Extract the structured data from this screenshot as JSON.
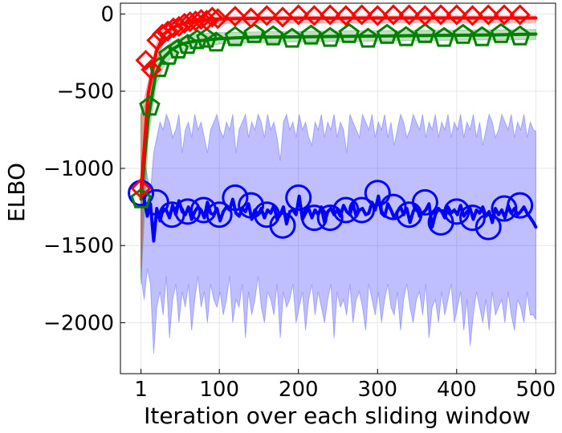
{
  "chart_data": {
    "type": "line",
    "xlabel": "Iteration over each sliding window",
    "ylabel": "ELBO",
    "xlim": [
      -25,
      525
    ],
    "ylim": [
      -2330,
      70
    ],
    "xticks": [
      1,
      100,
      200,
      300,
      400,
      500
    ],
    "xtick_labels": [
      "1",
      "100",
      "200",
      "300",
      "400",
      "500"
    ],
    "yticks": [
      0,
      -500,
      -1000,
      -1500,
      -2000
    ],
    "ytick_labels": [
      "0",
      "−500",
      "−1000",
      "−1500",
      "−2000"
    ],
    "grid": true,
    "legend": null,
    "colors": {
      "red": "#ff0000",
      "green": "#008000",
      "blue": "#0000ff"
    },
    "series": [
      {
        "color": "#ff0000",
        "marker": "diamond",
        "x": [
          1,
          10,
          20,
          30,
          40,
          50,
          60,
          70,
          80,
          90,
          100,
          120,
          150,
          200,
          250,
          300,
          350,
          400,
          450,
          500
        ],
        "values": [
          -1150,
          -520,
          -250,
          -130,
          -90,
          -68,
          -55,
          -45,
          -40,
          -36,
          -33,
          -30,
          -28,
          -27,
          -27,
          -26,
          -26,
          -26,
          -26,
          -26
        ],
        "band_lower": [
          -1650,
          -600,
          -310,
          -180,
          -130,
          -100,
          -85,
          -75,
          -70,
          -66,
          -63,
          -60,
          -58,
          -57,
          -57,
          -56,
          -56,
          -56,
          -56,
          -56
        ],
        "band_upper": [
          -650,
          -440,
          -200,
          -90,
          -55,
          -40,
          -30,
          -25,
          -22,
          -20,
          -18,
          -15,
          -14,
          -13,
          -13,
          -12,
          -12,
          -12,
          -12,
          -12
        ],
        "markers_x": [
          1,
          7,
          14,
          21,
          28,
          35,
          42,
          49,
          56,
          63,
          70,
          77,
          84,
          91,
          98,
          120,
          140,
          160,
          180,
          200,
          220,
          240,
          260,
          280,
          300,
          320,
          340,
          360,
          380,
          400,
          420,
          440,
          460,
          480
        ],
        "markers_y": [
          -1130,
          -300,
          -360,
          -170,
          -130,
          -110,
          -90,
          -80,
          -60,
          -50,
          -45,
          -35,
          -40,
          -20,
          -30,
          -15,
          -25,
          -10,
          -20,
          -5,
          -10,
          -5,
          -10,
          -5,
          -10,
          -5,
          -5,
          -10,
          -5,
          -5,
          -10,
          -5,
          -5,
          -5
        ]
      },
      {
        "color": "#008000",
        "marker": "pentagon",
        "x": [
          1,
          10,
          20,
          30,
          40,
          50,
          60,
          70,
          80,
          100,
          120,
          150,
          200,
          250,
          300,
          350,
          400,
          450,
          500
        ],
        "values": [
          -1200,
          -680,
          -380,
          -280,
          -230,
          -200,
          -185,
          -175,
          -170,
          -160,
          -155,
          -150,
          -148,
          -145,
          -143,
          -140,
          -138,
          -135,
          -130
        ],
        "band_lower": [
          -1750,
          -820,
          -460,
          -340,
          -280,
          -250,
          -230,
          -220,
          -210,
          -195,
          -190,
          -185,
          -180,
          -178,
          -175,
          -172,
          -170,
          -168,
          -165
        ],
        "band_upper": [
          -650,
          -540,
          -300,
          -220,
          -180,
          -155,
          -140,
          -130,
          -125,
          -120,
          -118,
          -115,
          -112,
          -110,
          -108,
          -106,
          -104,
          -102,
          -100
        ],
        "markers_x": [
          1,
          12,
          24,
          36,
          48,
          60,
          72,
          84,
          96,
          120,
          144,
          168,
          192,
          216,
          240,
          264,
          288,
          312,
          336,
          360,
          384,
          408,
          432,
          456,
          480
        ],
        "markers_y": [
          -1200,
          -600,
          -350,
          -270,
          -230,
          -200,
          -170,
          -160,
          -185,
          -150,
          -130,
          -145,
          -160,
          -140,
          -155,
          -130,
          -160,
          -135,
          -150,
          -130,
          -155,
          -135,
          -150,
          -130,
          -145
        ]
      },
      {
        "color": "#0000ff",
        "marker": "circle",
        "x": [
          1,
          5,
          9,
          13,
          17,
          21,
          25,
          29,
          33,
          37,
          41,
          45,
          49,
          53,
          57,
          61,
          65,
          69,
          73,
          77,
          81,
          85,
          89,
          93,
          97,
          101,
          105,
          109,
          113,
          117,
          121,
          125,
          129,
          133,
          137,
          141,
          145,
          149,
          153,
          157,
          161,
          165,
          169,
          173,
          177,
          181,
          185,
          189,
          193,
          197,
          201,
          205,
          209,
          213,
          217,
          221,
          225,
          229,
          233,
          237,
          241,
          245,
          249,
          253,
          257,
          261,
          265,
          269,
          273,
          277,
          281,
          285,
          289,
          293,
          297,
          301,
          305,
          309,
          313,
          317,
          321,
          325,
          329,
          333,
          337,
          341,
          345,
          349,
          353,
          357,
          361,
          365,
          369,
          373,
          377,
          381,
          385,
          389,
          393,
          397,
          401,
          405,
          409,
          413,
          417,
          421,
          425,
          429,
          433,
          437,
          441,
          445,
          449,
          453,
          457,
          461,
          465,
          469,
          473,
          477,
          481,
          485,
          489,
          493,
          497,
          500
        ],
        "values": [
          -1150,
          -1200,
          -1310,
          -1230,
          -1470,
          -1260,
          -1340,
          -1260,
          -1270,
          -1320,
          -1240,
          -1300,
          -1210,
          -1280,
          -1300,
          -1250,
          -1330,
          -1280,
          -1250,
          -1270,
          -1320,
          -1220,
          -1290,
          -1300,
          -1260,
          -1340,
          -1280,
          -1250,
          -1270,
          -1200,
          -1290,
          -1310,
          -1260,
          -1280,
          -1230,
          -1330,
          -1270,
          -1300,
          -1260,
          -1320,
          -1270,
          -1290,
          -1240,
          -1330,
          -1300,
          -1250,
          -1360,
          -1280,
          -1270,
          -1300,
          -1180,
          -1330,
          -1290,
          -1260,
          -1320,
          -1270,
          -1300,
          -1250,
          -1350,
          -1280,
          -1260,
          -1300,
          -1270,
          -1310,
          -1240,
          -1280,
          -1300,
          -1230,
          -1310,
          -1270,
          -1260,
          -1300,
          -1290,
          -1220,
          -1270,
          -1180,
          -1290,
          -1310,
          -1230,
          -1270,
          -1320,
          -1280,
          -1250,
          -1300,
          -1260,
          -1350,
          -1280,
          -1240,
          -1310,
          -1290,
          -1270,
          -1230,
          -1380,
          -1300,
          -1260,
          -1280,
          -1320,
          -1250,
          -1290,
          -1270,
          -1300,
          -1240,
          -1310,
          -1280,
          -1260,
          -1330,
          -1270,
          -1290,
          -1250,
          -1310,
          -1280,
          -1350,
          -1260,
          -1300,
          -1270,
          -1320,
          -1240,
          -1290,
          -1260,
          -1300,
          -1280,
          -1250,
          -1290,
          -1320,
          -1350,
          -1380
        ],
        "band_lower": [
          -1700,
          -1850,
          -1650,
          -1750,
          -2200,
          -1900,
          -1800,
          -1950,
          -1700,
          -2100,
          -1850,
          -1750,
          -2000,
          -1800,
          -1900,
          -1750,
          -2050,
          -1850,
          -1700,
          -1900,
          -1800,
          -2000,
          -1750,
          -1850,
          -1900,
          -1800,
          -1950,
          -1850,
          -1700,
          -2000,
          -1850,
          -1900,
          -1750,
          -2100,
          -1800,
          -1950,
          -1850,
          -1700,
          -1900,
          -2000,
          -1800,
          -1850,
          -1950,
          -1750,
          -2100,
          -1800,
          -1900,
          -1850,
          -1750,
          -2000,
          -1900,
          -1800,
          -2050,
          -1850,
          -1750,
          -1950,
          -1800,
          -1900,
          -2000,
          -1850,
          -1750,
          -2100,
          -1800,
          -1900,
          -1850,
          -1950,
          -1750,
          -2000,
          -1850,
          -1800,
          -1900,
          -2050,
          -1750,
          -1850,
          -1950,
          -1800,
          -2000,
          -1850,
          -1750,
          -1900,
          -1950,
          -1800,
          -2050,
          -1850,
          -1750,
          -1900,
          -2000,
          -1850,
          -1800,
          -1950,
          -1750,
          -2100,
          -1900,
          -1850,
          -2000,
          -1800,
          -1950,
          -1850,
          -1750,
          -2000,
          -1900,
          -1800,
          -2050,
          -1850,
          -2150,
          -1950,
          -1800,
          -1900,
          -2000,
          -1850,
          -2050,
          -1800,
          -1950,
          -1900,
          -1850,
          -2000,
          -1800,
          -1950,
          -2050,
          -1850,
          -1900,
          -2000,
          -1800,
          -1950,
          -1950,
          -1980
        ],
        "band_upper": [
          -1100,
          -950,
          -1050,
          -1150,
          -900,
          -800,
          -700,
          -750,
          -650,
          -700,
          -800,
          -750,
          -650,
          -900,
          -750,
          -700,
          -800,
          -650,
          -750,
          -700,
          -800,
          -900,
          -750,
          -700,
          -650,
          -750,
          -800,
          -700,
          -750,
          -650,
          -900,
          -750,
          -700,
          -650,
          -800,
          -700,
          -750,
          -650,
          -700,
          -800,
          -650,
          -750,
          -700,
          -800,
          -950,
          -700,
          -650,
          -750,
          -700,
          -800,
          -650,
          -750,
          -700,
          -800,
          -850,
          -700,
          -750,
          -650,
          -800,
          -700,
          -750,
          -650,
          -800,
          -700,
          -750,
          -900,
          -650,
          -700,
          -750,
          -800,
          -650,
          -700,
          -750,
          -650,
          -800,
          -700,
          -750,
          -650,
          -800,
          -700,
          -850,
          -750,
          -650,
          -700,
          -800,
          -750,
          -650,
          -700,
          -750,
          -650,
          -800,
          -700,
          -750,
          -650,
          -800,
          -700,
          -750,
          -650,
          -800,
          -700,
          -750,
          -650,
          -800,
          -700,
          -750,
          -650,
          -800,
          -700,
          -850,
          -750,
          -650,
          -700,
          -800,
          -750,
          -650,
          -700,
          -750,
          -650,
          -800,
          -700,
          -750,
          -650,
          -800,
          -700,
          -750,
          -760
        ],
        "markers_x": [
          1,
          20,
          40,
          60,
          80,
          100,
          120,
          140,
          160,
          180,
          200,
          220,
          240,
          260,
          280,
          300,
          320,
          340,
          360,
          380,
          400,
          420,
          440,
          460,
          480
        ],
        "markers_y": [
          -1160,
          -1220,
          -1300,
          -1280,
          -1270,
          -1300,
          -1190,
          -1240,
          -1300,
          -1370,
          -1190,
          -1320,
          -1320,
          -1270,
          -1270,
          -1160,
          -1250,
          -1300,
          -1220,
          -1350,
          -1280,
          -1320,
          -1380,
          -1260,
          -1240
        ]
      }
    ]
  }
}
